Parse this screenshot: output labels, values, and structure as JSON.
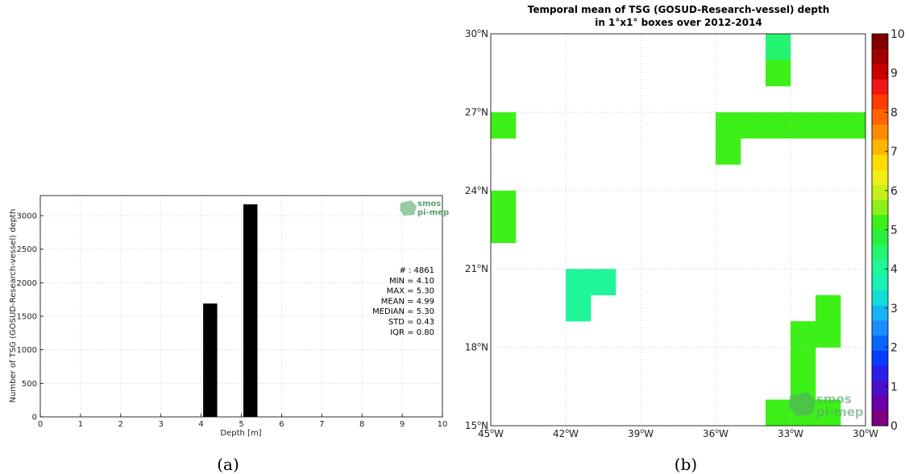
{
  "colors": {
    "bar": "#000000",
    "grid": "#cccccc",
    "axis": "#000000",
    "logo": "#5aa070"
  },
  "logo": {
    "line1": "smos",
    "line2": "pi-mep"
  },
  "chart_data": [
    {
      "type": "bar",
      "panel_label": "(a)",
      "xlabel": "Depth [m]",
      "ylabel": "Number of TSG (GOSUD-Research-vessel) depth",
      "xlim": [
        0,
        10
      ],
      "ylim": [
        0,
        3300
      ],
      "xticks": [
        0,
        1,
        2,
        3,
        4,
        5,
        6,
        7,
        8,
        9,
        10
      ],
      "yticks": [
        0,
        500,
        1000,
        1500,
        2000,
        2500,
        3000
      ],
      "grid": true,
      "bars": [
        {
          "x0": 4.05,
          "x1": 4.4,
          "value": 1690
        },
        {
          "x0": 5.05,
          "x1": 5.4,
          "value": 3170
        }
      ],
      "stats": [
        "# : 4861",
        "MIN = 4.10",
        "MAX =  5.30",
        "MEAN = 4.99",
        "MEDIAN = 5.30",
        "STD = 0.43",
        "IQR = 0.80"
      ]
    },
    {
      "type": "heatmap",
      "panel_label": "(b)",
      "title_line1": "Temporal mean of TSG (GOSUD-Research-vessel) depth",
      "title_line2": "in 1°x1° boxes over 2012-2014",
      "lon_range": [
        -45,
        -30
      ],
      "lat_range": [
        15,
        30
      ],
      "lon_ticks": [
        {
          "value": -45,
          "label": "45",
          "hemi": "W"
        },
        {
          "value": -42,
          "label": "42",
          "hemi": "W"
        },
        {
          "value": -39,
          "label": "39",
          "hemi": "W"
        },
        {
          "value": -36,
          "label": "36",
          "hemi": "W"
        },
        {
          "value": -33,
          "label": "33",
          "hemi": "W"
        },
        {
          "value": -30,
          "label": "30",
          "hemi": "W"
        }
      ],
      "lat_ticks": [
        {
          "value": 15,
          "label": "15",
          "hemi": "N"
        },
        {
          "value": 18,
          "label": "18",
          "hemi": "N"
        },
        {
          "value": 21,
          "label": "21",
          "hemi": "N"
        },
        {
          "value": 24,
          "label": "24",
          "hemi": "N"
        },
        {
          "value": 27,
          "label": "27",
          "hemi": "N"
        },
        {
          "value": 30,
          "label": "30",
          "hemi": "N"
        }
      ],
      "colorbar": {
        "range": [
          0,
          10
        ],
        "ticks": [
          "0",
          "1",
          "2",
          "3",
          "4",
          "5",
          "6",
          "7",
          "8",
          "9",
          "10"
        ],
        "colors": [
          "#7f007f",
          "#6a00a8",
          "#4b0fc8",
          "#2b1ee8",
          "#0a3cff",
          "#0a64ff",
          "#1a8cff",
          "#16b4f0",
          "#10dcd8",
          "#1af0b4",
          "#20f59a",
          "#24f570",
          "#28f040",
          "#3cf018",
          "#8cf018",
          "#c8f018",
          "#f0f018",
          "#ffdc00",
          "#ffb400",
          "#ff8c00",
          "#ff6400",
          "#ff3c00",
          "#f01414",
          "#c80000",
          "#a00000",
          "#800000"
        ]
      },
      "cells": [
        {
          "lon0": -34,
          "lat0": 29,
          "value": 4.3
        },
        {
          "lon0": -34,
          "lat0": 28,
          "value": 5.1
        },
        {
          "lon0": -45,
          "lat0": 26,
          "value": 5.0
        },
        {
          "lon0": -36,
          "lat0": 26,
          "value": 5.0
        },
        {
          "lon0": -35,
          "lat0": 26,
          "value": 5.0
        },
        {
          "lon0": -34,
          "lat0": 26,
          "value": 5.0
        },
        {
          "lon0": -33,
          "lat0": 26,
          "value": 5.0
        },
        {
          "lon0": -32,
          "lat0": 26,
          "value": 5.0
        },
        {
          "lon0": -31,
          "lat0": 26,
          "value": 5.0
        },
        {
          "lon0": -36,
          "lat0": 25,
          "value": 5.0
        },
        {
          "lon0": -45,
          "lat0": 23,
          "value": 5.0
        },
        {
          "lon0": -45,
          "lat0": 22,
          "value": 5.0
        },
        {
          "lon0": -42,
          "lat0": 20,
          "value": 4.2
        },
        {
          "lon0": -41,
          "lat0": 20,
          "value": 4.2
        },
        {
          "lon0": -42,
          "lat0": 19,
          "value": 4.2
        },
        {
          "lon0": -32,
          "lat0": 19,
          "value": 5.1
        },
        {
          "lon0": -33,
          "lat0": 18,
          "value": 5.1
        },
        {
          "lon0": -32,
          "lat0": 18,
          "value": 5.1
        },
        {
          "lon0": -33,
          "lat0": 17,
          "value": 5.1
        },
        {
          "lon0": -33,
          "lat0": 16,
          "value": 5.1
        },
        {
          "lon0": -34,
          "lat0": 15,
          "value": 5.1
        },
        {
          "lon0": -33,
          "lat0": 15,
          "value": 5.1
        },
        {
          "lon0": -32,
          "lat0": 15,
          "value": 5.1
        }
      ]
    }
  ]
}
